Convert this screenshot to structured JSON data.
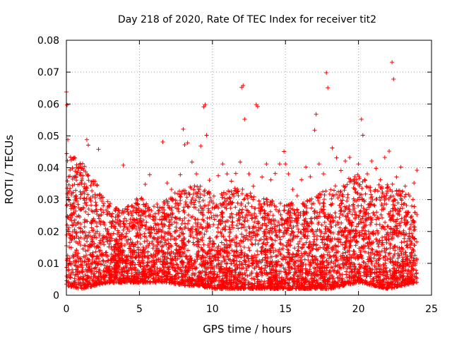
{
  "chart_data": {
    "type": "scatter",
    "title": "Day 218 of 2020, Rate Of TEC Index for receiver tit2",
    "xlabel": "GPS time / hours",
    "ylabel": "ROTI / TECUs",
    "xlim": [
      0,
      25
    ],
    "ylim": [
      0,
      0.08
    ],
    "xticks": [
      0,
      5,
      10,
      15,
      20,
      25
    ],
    "xtick_labels": [
      "0",
      "5",
      "10",
      "15",
      "20",
      "25"
    ],
    "yticks": [
      0,
      0.01,
      0.02,
      0.03,
      0.04,
      0.05,
      0.06,
      0.07,
      0.08
    ],
    "ytick_labels": [
      "0",
      "0.01",
      "0.02",
      "0.03",
      "0.04",
      "0.05",
      "0.06",
      "0.07",
      "0.08"
    ],
    "grid": true,
    "marker": "plus",
    "color": "#ff0000",
    "series": [
      {
        "name": "",
        "x": [
          0.0,
          0.05,
          0.1,
          0.15,
          0.2,
          0.3,
          0.4,
          0.5,
          0.6,
          0.8,
          1.0,
          1.2,
          1.4,
          1.5,
          1.6,
          1.8,
          2.0,
          2.2,
          2.4,
          2.6,
          2.8,
          3.0,
          3.3,
          3.6,
          3.9,
          4.2,
          4.5,
          4.8,
          5.1,
          5.4,
          5.7,
          6.0,
          6.3,
          6.6,
          6.9,
          7.2,
          7.5,
          7.8,
          8.0,
          8.1,
          8.3,
          8.6,
          8.9,
          9.2,
          9.4,
          9.5,
          9.6,
          9.8,
          10.1,
          10.4,
          10.7,
          11.0,
          11.3,
          11.6,
          11.9,
          12.0,
          12.1,
          12.2,
          12.5,
          12.8,
          13.0,
          13.1,
          13.4,
          13.7,
          14.0,
          14.3,
          14.6,
          14.9,
          15.0,
          15.2,
          15.5,
          15.8,
          16.1,
          16.4,
          16.7,
          17.0,
          17.1,
          17.3,
          17.6,
          17.8,
          17.9,
          18.2,
          18.5,
          18.8,
          19.1,
          19.4,
          19.7,
          20.0,
          20.2,
          20.3,
          20.6,
          20.9,
          21.2,
          21.5,
          21.8,
          22.1,
          22.3,
          22.4,
          22.6,
          22.9,
          23.2,
          23.5,
          23.8,
          24.0
        ],
        "y": [
          0.0638,
          0.0597,
          0.0488,
          0.0372,
          0.0298,
          0.0251,
          0.0182,
          0.0121,
          0.0104,
          0.0285,
          0.0401,
          0.0392,
          0.0488,
          0.0471,
          0.0301,
          0.0262,
          0.0281,
          0.0458,
          0.0312,
          0.0221,
          0.0201,
          0.0288,
          0.0172,
          0.0265,
          0.0408,
          0.0278,
          0.0281,
          0.0302,
          0.0232,
          0.0348,
          0.0378,
          0.0181,
          0.0221,
          0.0481,
          0.0352,
          0.0332,
          0.0241,
          0.0378,
          0.0521,
          0.0472,
          0.0478,
          0.0418,
          0.0381,
          0.0468,
          0.0591,
          0.0598,
          0.0502,
          0.0361,
          0.0311,
          0.0375,
          0.0412,
          0.0381,
          0.0358,
          0.0382,
          0.0418,
          0.0652,
          0.0658,
          0.0552,
          0.0381,
          0.0342,
          0.0598,
          0.0592,
          0.0371,
          0.0412,
          0.0362,
          0.0382,
          0.0412,
          0.0451,
          0.0412,
          0.0381,
          0.0332,
          0.0312,
          0.0362,
          0.0402,
          0.0372,
          0.0518,
          0.0568,
          0.0412,
          0.0381,
          0.0698,
          0.0651,
          0.0462,
          0.0431,
          0.0391,
          0.0421,
          0.0432,
          0.0362,
          0.0412,
          0.0552,
          0.0502,
          0.0381,
          0.0421,
          0.0398,
          0.0362,
          0.0432,
          0.0452,
          0.0731,
          0.0678,
          0.0371,
          0.0402,
          0.0342,
          0.0311,
          0.0352,
          0.0392
        ]
      }
    ],
    "background_density": {
      "note_bins_hours": [
        0,
        1,
        2,
        3,
        4,
        5,
        6,
        7,
        8,
        9,
        10,
        11,
        12,
        13,
        14,
        15,
        16,
        17,
        18,
        19,
        20,
        21,
        22,
        23,
        24
      ],
      "typical_max": [
        0.045,
        0.042,
        0.036,
        0.028,
        0.027,
        0.031,
        0.028,
        0.031,
        0.034,
        0.035,
        0.032,
        0.033,
        0.034,
        0.031,
        0.03,
        0.029,
        0.029,
        0.031,
        0.034,
        0.036,
        0.038,
        0.034,
        0.036,
        0.033,
        0.03
      ],
      "typical_min": [
        0.003,
        0.002,
        0.003,
        0.004,
        0.004,
        0.004,
        0.004,
        0.004,
        0.003,
        0.003,
        0.002,
        0.002,
        0.002,
        0.002,
        0.002,
        0.002,
        0.002,
        0.002,
        0.002,
        0.003,
        0.004,
        0.003,
        0.002,
        0.003,
        0.004
      ]
    }
  }
}
